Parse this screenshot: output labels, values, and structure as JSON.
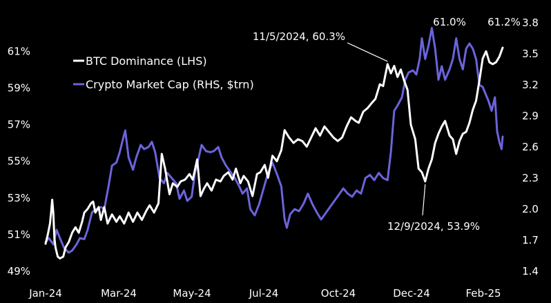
{
  "colors": {
    "background": "#000000",
    "btc_dominance": "#ffffff",
    "crypto_market_cap": "#6b64dc",
    "text": "#ffffff"
  },
  "chart_data": {
    "type": "line",
    "title": "",
    "xlabel": "",
    "ylabel": "",
    "x_ticks": [
      "Jan-24",
      "Mar-24",
      "May-24",
      "Jul-24",
      "Oct-24",
      "Dec-24",
      "Feb-25"
    ],
    "y_left_ticks": [
      "49%",
      "51%",
      "53%",
      "55%",
      "57%",
      "59%",
      "61%"
    ],
    "y_right_ticks": [
      "1.4",
      "1.7",
      "2.0",
      "2.3",
      "2.6",
      "2.9",
      "3.2",
      "3.5",
      "3.8"
    ],
    "y_left_range": [
      49,
      61.5
    ],
    "y_right_range": [
      1.4,
      3.8
    ],
    "x_range": [
      "2024-01-01",
      "2025-02-17"
    ],
    "legend_position": "top-left",
    "legend": [
      {
        "label": "BTC Dominance (LHS)",
        "series": "btc"
      },
      {
        "label": "Crypto Market Cap (RHS, $trn)",
        "series": "mcap"
      }
    ],
    "series": [
      {
        "name": "BTC Dominance (LHS)",
        "axis": "left",
        "unit": "%",
        "points": [
          [
            "2024-01-01",
            50.5
          ],
          [
            "2024-01-03",
            51.0
          ],
          [
            "2024-01-05",
            51.6
          ],
          [
            "2024-01-06",
            52.2
          ],
          [
            "2024-01-07",
            52.9
          ],
          [
            "2024-01-08",
            52.2
          ],
          [
            "2024-01-09",
            50.8
          ],
          [
            "2024-01-10",
            50.3
          ],
          [
            "2024-01-12",
            49.8
          ],
          [
            "2024-01-14",
            49.7
          ],
          [
            "2024-01-17",
            49.8
          ],
          [
            "2024-01-19",
            50.3
          ],
          [
            "2024-01-22",
            50.6
          ],
          [
            "2024-01-25",
            51.1
          ],
          [
            "2024-01-28",
            51.4
          ],
          [
            "2024-01-31",
            51.1
          ],
          [
            "2024-02-03",
            51.7
          ],
          [
            "2024-02-05",
            52.2
          ],
          [
            "2024-02-08",
            52.4
          ],
          [
            "2024-02-11",
            52.7
          ],
          [
            "2024-02-13",
            52.8
          ],
          [
            "2024-02-15",
            52.2
          ],
          [
            "2024-02-18",
            52.5
          ],
          [
            "2024-02-20",
            51.8
          ],
          [
            "2024-02-23",
            52.5
          ],
          [
            "2024-02-26",
            51.6
          ],
          [
            "2024-03-01",
            52.1
          ],
          [
            "2024-03-05",
            51.7
          ],
          [
            "2024-03-08",
            52.0
          ],
          [
            "2024-03-12",
            51.6
          ],
          [
            "2024-03-16",
            52.2
          ],
          [
            "2024-03-20",
            51.7
          ],
          [
            "2024-03-24",
            52.2
          ],
          [
            "2024-03-28",
            51.8
          ],
          [
            "2024-04-01",
            52.3
          ],
          [
            "2024-04-04",
            52.6
          ],
          [
            "2024-04-08",
            52.2
          ],
          [
            "2024-04-12",
            52.7
          ],
          [
            "2024-04-15",
            55.4
          ],
          [
            "2024-04-18",
            54.6
          ],
          [
            "2024-04-22",
            53.2
          ],
          [
            "2024-04-25",
            53.8
          ],
          [
            "2024-04-29",
            53.6
          ],
          [
            "2024-05-02",
            53.9
          ],
          [
            "2024-05-06",
            54.0
          ],
          [
            "2024-05-10",
            54.3
          ],
          [
            "2024-05-13",
            54.0
          ],
          [
            "2024-05-17",
            55.1
          ],
          [
            "2024-05-20",
            53.1
          ],
          [
            "2024-05-23",
            53.5
          ],
          [
            "2024-05-26",
            53.8
          ],
          [
            "2024-05-30",
            53.4
          ],
          [
            "2024-06-03",
            54.0
          ],
          [
            "2024-06-07",
            53.9
          ],
          [
            "2024-06-10",
            54.2
          ],
          [
            "2024-06-14",
            54.4
          ],
          [
            "2024-06-18",
            54.0
          ],
          [
            "2024-06-21",
            54.6
          ],
          [
            "2024-06-25",
            53.8
          ],
          [
            "2024-06-28",
            54.2
          ],
          [
            "2024-07-02",
            53.9
          ],
          [
            "2024-07-06",
            53.1
          ],
          [
            "2024-07-10",
            54.3
          ],
          [
            "2024-07-13",
            54.4
          ],
          [
            "2024-07-17",
            54.8
          ],
          [
            "2024-07-20",
            54.1
          ],
          [
            "2024-07-24",
            55.3
          ],
          [
            "2024-07-28",
            55.0
          ],
          [
            "2024-08-01",
            55.6
          ],
          [
            "2024-08-04",
            56.7
          ],
          [
            "2024-08-08",
            56.3
          ],
          [
            "2024-08-12",
            56.0
          ],
          [
            "2024-08-16",
            56.2
          ],
          [
            "2024-08-20",
            56.1
          ],
          [
            "2024-08-24",
            55.8
          ],
          [
            "2024-08-28",
            56.3
          ],
          [
            "2024-09-01",
            56.8
          ],
          [
            "2024-09-05",
            56.4
          ],
          [
            "2024-09-09",
            56.9
          ],
          [
            "2024-09-13",
            56.6
          ],
          [
            "2024-09-17",
            56.3
          ],
          [
            "2024-09-21",
            56.1
          ],
          [
            "2024-09-25",
            56.3
          ],
          [
            "2024-09-29",
            56.9
          ],
          [
            "2024-10-03",
            57.4
          ],
          [
            "2024-10-07",
            57.2
          ],
          [
            "2024-10-10",
            57.1
          ],
          [
            "2024-10-14",
            57.7
          ],
          [
            "2024-10-18",
            57.9
          ],
          [
            "2024-10-22",
            58.2
          ],
          [
            "2024-10-25",
            58.4
          ],
          [
            "2024-10-29",
            59.2
          ],
          [
            "2024-11-01",
            59.1
          ],
          [
            "2024-11-05",
            60.3
          ],
          [
            "2024-11-08",
            59.8
          ],
          [
            "2024-11-11",
            60.2
          ],
          [
            "2024-11-14",
            59.6
          ],
          [
            "2024-11-17",
            60.0
          ],
          [
            "2024-11-20",
            59.4
          ],
          [
            "2024-11-23",
            58.9
          ],
          [
            "2024-11-26",
            57.0
          ],
          [
            "2024-11-30",
            56.2
          ],
          [
            "2024-12-03",
            54.6
          ],
          [
            "2024-12-06",
            54.4
          ],
          [
            "2024-12-09",
            53.9
          ],
          [
            "2024-12-12",
            54.6
          ],
          [
            "2024-12-15",
            55.1
          ],
          [
            "2024-12-18",
            56.0
          ],
          [
            "2024-12-21",
            56.5
          ],
          [
            "2024-12-24",
            56.9
          ],
          [
            "2024-12-27",
            57.2
          ],
          [
            "2024-12-31",
            56.4
          ],
          [
            "2025-01-03",
            56.2
          ],
          [
            "2025-01-06",
            55.4
          ],
          [
            "2025-01-09",
            56.1
          ],
          [
            "2025-01-12",
            56.5
          ],
          [
            "2025-01-15",
            56.6
          ],
          [
            "2025-01-18",
            57.1
          ],
          [
            "2025-01-21",
            57.8
          ],
          [
            "2025-01-24",
            58.3
          ],
          [
            "2025-01-27",
            59.4
          ],
          [
            "2025-01-30",
            60.6
          ],
          [
            "2025-02-02",
            61.0
          ],
          [
            "2025-02-05",
            60.4
          ],
          [
            "2025-02-08",
            60.3
          ],
          [
            "2025-02-11",
            60.4
          ],
          [
            "2025-02-14",
            60.7
          ],
          [
            "2025-02-17",
            61.2
          ]
        ]
      },
      {
        "name": "Crypto Market Cap (RHS, $trn)",
        "axis": "right",
        "unit": "$trn",
        "points": [
          [
            "2024-01-01",
            1.68
          ],
          [
            "2024-01-04",
            1.72
          ],
          [
            "2024-01-08",
            1.66
          ],
          [
            "2024-01-11",
            1.8
          ],
          [
            "2024-01-14",
            1.72
          ],
          [
            "2024-01-18",
            1.62
          ],
          [
            "2024-01-22",
            1.58
          ],
          [
            "2024-01-25",
            1.6
          ],
          [
            "2024-01-29",
            1.66
          ],
          [
            "2024-02-01",
            1.72
          ],
          [
            "2024-02-05",
            1.71
          ],
          [
            "2024-02-08",
            1.8
          ],
          [
            "2024-02-12",
            1.97
          ],
          [
            "2024-02-16",
            2.0
          ],
          [
            "2024-02-20",
            2.02
          ],
          [
            "2024-02-23",
            2.0
          ],
          [
            "2024-02-27",
            2.23
          ],
          [
            "2024-03-01",
            2.42
          ],
          [
            "2024-03-05",
            2.45
          ],
          [
            "2024-03-08",
            2.55
          ],
          [
            "2024-03-11",
            2.68
          ],
          [
            "2024-03-13",
            2.76
          ],
          [
            "2024-03-16",
            2.5
          ],
          [
            "2024-03-20",
            2.38
          ],
          [
            "2024-03-23",
            2.5
          ],
          [
            "2024-03-27",
            2.62
          ],
          [
            "2024-03-30",
            2.58
          ],
          [
            "2024-04-03",
            2.6
          ],
          [
            "2024-04-06",
            2.65
          ],
          [
            "2024-04-09",
            2.55
          ],
          [
            "2024-04-13",
            2.3
          ],
          [
            "2024-04-17",
            2.25
          ],
          [
            "2024-04-20",
            2.35
          ],
          [
            "2024-04-24",
            2.3
          ],
          [
            "2024-04-28",
            2.25
          ],
          [
            "2024-05-01",
            2.1
          ],
          [
            "2024-05-05",
            2.18
          ],
          [
            "2024-05-08",
            2.08
          ],
          [
            "2024-05-12",
            2.12
          ],
          [
            "2024-05-15",
            2.35
          ],
          [
            "2024-05-18",
            2.48
          ],
          [
            "2024-05-21",
            2.62
          ],
          [
            "2024-05-25",
            2.56
          ],
          [
            "2024-05-29",
            2.55
          ],
          [
            "2024-06-01",
            2.56
          ],
          [
            "2024-06-05",
            2.6
          ],
          [
            "2024-06-08",
            2.5
          ],
          [
            "2024-06-12",
            2.42
          ],
          [
            "2024-06-16",
            2.36
          ],
          [
            "2024-06-20",
            2.3
          ],
          [
            "2024-06-24",
            2.22
          ],
          [
            "2024-06-27",
            2.15
          ],
          [
            "2024-07-01",
            2.2
          ],
          [
            "2024-07-04",
            2.0
          ],
          [
            "2024-07-08",
            1.94
          ],
          [
            "2024-07-12",
            2.05
          ],
          [
            "2024-07-16",
            2.2
          ],
          [
            "2024-07-20",
            2.35
          ],
          [
            "2024-07-24",
            2.45
          ],
          [
            "2024-07-28",
            2.34
          ],
          [
            "2024-08-01",
            2.22
          ],
          [
            "2024-08-04",
            1.9
          ],
          [
            "2024-08-06",
            1.82
          ],
          [
            "2024-08-09",
            1.95
          ],
          [
            "2024-08-13",
            2.0
          ],
          [
            "2024-08-17",
            1.98
          ],
          [
            "2024-08-21",
            2.05
          ],
          [
            "2024-08-25",
            2.15
          ],
          [
            "2024-08-29",
            2.05
          ],
          [
            "2024-09-02",
            1.97
          ],
          [
            "2024-09-06",
            1.9
          ],
          [
            "2024-09-10",
            1.96
          ],
          [
            "2024-09-14",
            2.02
          ],
          [
            "2024-09-18",
            2.08
          ],
          [
            "2024-09-22",
            2.14
          ],
          [
            "2024-09-26",
            2.2
          ],
          [
            "2024-09-30",
            2.15
          ],
          [
            "2024-10-04",
            2.12
          ],
          [
            "2024-10-08",
            2.18
          ],
          [
            "2024-10-12",
            2.15
          ],
          [
            "2024-10-16",
            2.3
          ],
          [
            "2024-10-20",
            2.33
          ],
          [
            "2024-10-24",
            2.28
          ],
          [
            "2024-10-28",
            2.35
          ],
          [
            "2024-11-01",
            2.3
          ],
          [
            "2024-11-05",
            2.28
          ],
          [
            "2024-11-08",
            2.55
          ],
          [
            "2024-11-11",
            2.95
          ],
          [
            "2024-11-14",
            3.0
          ],
          [
            "2024-11-18",
            3.08
          ],
          [
            "2024-11-21",
            3.25
          ],
          [
            "2024-11-24",
            3.32
          ],
          [
            "2024-11-28",
            3.34
          ],
          [
            "2024-12-01",
            3.3
          ],
          [
            "2024-12-04",
            3.45
          ],
          [
            "2024-12-06",
            3.65
          ],
          [
            "2024-12-09",
            3.45
          ],
          [
            "2024-12-12",
            3.58
          ],
          [
            "2024-12-15",
            3.75
          ],
          [
            "2024-12-18",
            3.55
          ],
          [
            "2024-12-21",
            3.25
          ],
          [
            "2024-12-24",
            3.38
          ],
          [
            "2024-12-27",
            3.25
          ],
          [
            "2024-12-31",
            3.35
          ],
          [
            "2025-01-03",
            3.45
          ],
          [
            "2025-01-06",
            3.65
          ],
          [
            "2025-01-09",
            3.45
          ],
          [
            "2025-01-12",
            3.35
          ],
          [
            "2025-01-15",
            3.55
          ],
          [
            "2025-01-18",
            3.6
          ],
          [
            "2025-01-21",
            3.55
          ],
          [
            "2025-01-24",
            3.45
          ],
          [
            "2025-01-27",
            3.2
          ],
          [
            "2025-01-30",
            3.18
          ],
          [
            "2025-02-02",
            3.1
          ],
          [
            "2025-02-04",
            3.05
          ],
          [
            "2025-02-07",
            2.95
          ],
          [
            "2025-02-10",
            3.08
          ],
          [
            "2025-02-12",
            2.75
          ],
          [
            "2025-02-14",
            2.65
          ],
          [
            "2025-02-16",
            2.58
          ],
          [
            "2025-02-17",
            2.7
          ]
        ]
      }
    ],
    "annotations": [
      {
        "text": "11/5/2024, 60.3%",
        "date": "2024-11-05",
        "value": 60.3,
        "axis": "left",
        "placement": "above-left"
      },
      {
        "text": "12/9/2024, 53.9%",
        "date": "2024-12-09",
        "value": 53.9,
        "axis": "left",
        "placement": "below"
      },
      {
        "text": "61.0%",
        "date": "2025-02-02",
        "value": 61.0,
        "axis": "left",
        "placement": "above"
      },
      {
        "text": "61.2%",
        "date": "2025-02-17",
        "value": 61.2,
        "axis": "left",
        "placement": "above"
      }
    ]
  }
}
